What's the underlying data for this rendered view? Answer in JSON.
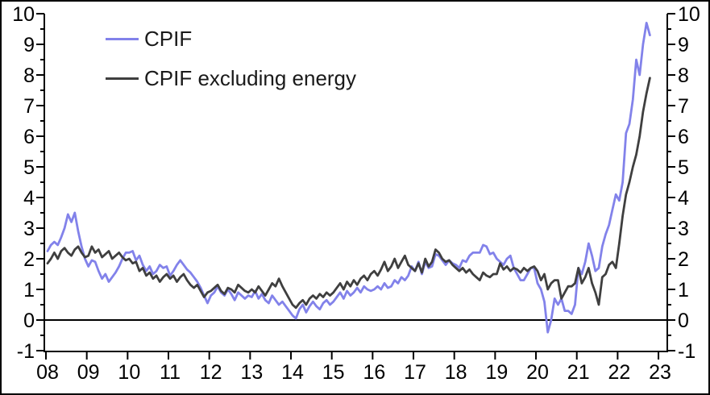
{
  "canvas": {
    "background": "#ffffff",
    "border_color": "#000000"
  },
  "chart_data": {
    "type": "line",
    "title": "",
    "xlabel": "",
    "ylabel": "",
    "frequency": "monthly",
    "x_start": "2008-01",
    "x_end": "2022-10",
    "xlim_years": [
      2008,
      2023
    ],
    "ylim": [
      -1,
      10
    ],
    "grid": "off",
    "zero_line": true,
    "dual_axis_labels": true,
    "legend_position": "top-left",
    "axis_color": "#000000",
    "xtick_labels": [
      "08",
      "09",
      "10",
      "11",
      "12",
      "13",
      "14",
      "15",
      "16",
      "17",
      "18",
      "19",
      "20",
      "21",
      "22",
      "23"
    ],
    "ytick_labels": [
      "-1",
      "0",
      "1",
      "2",
      "3",
      "4",
      "5",
      "6",
      "7",
      "8",
      "9",
      "10"
    ],
    "series": [
      {
        "name": "CPIF",
        "color": "#8282ea",
        "values": [
          2.25,
          2.45,
          2.55,
          2.45,
          2.7,
          3.0,
          3.45,
          3.2,
          3.5,
          2.9,
          2.4,
          2.0,
          1.75,
          1.95,
          1.9,
          1.6,
          1.35,
          1.5,
          1.25,
          1.4,
          1.55,
          1.75,
          2.0,
          2.2,
          2.2,
          2.25,
          1.95,
          2.1,
          1.8,
          1.6,
          1.75,
          1.5,
          1.6,
          1.8,
          1.7,
          1.75,
          1.45,
          1.6,
          1.8,
          1.95,
          1.8,
          1.65,
          1.55,
          1.4,
          1.25,
          1.05,
          0.8,
          0.55,
          0.8,
          0.9,
          1.1,
          0.9,
          0.8,
          1.0,
          0.85,
          0.65,
          0.9,
          0.8,
          0.7,
          0.8,
          0.75,
          0.95,
          0.7,
          0.85,
          0.65,
          0.55,
          0.8,
          0.65,
          0.5,
          0.6,
          0.45,
          0.3,
          0.15,
          0.05,
          0.35,
          0.5,
          0.25,
          0.45,
          0.6,
          0.45,
          0.35,
          0.55,
          0.65,
          0.5,
          0.6,
          0.75,
          0.9,
          0.7,
          0.95,
          0.8,
          0.9,
          1.05,
          0.9,
          1.1,
          1.0,
          0.95,
          1.0,
          1.1,
          1.0,
          1.2,
          1.05,
          1.1,
          1.3,
          1.2,
          1.4,
          1.3,
          1.45,
          1.75,
          1.6,
          1.9,
          1.5,
          1.9,
          1.7,
          1.75,
          2.15,
          2.1,
          1.95,
          1.8,
          1.95,
          1.85,
          1.8,
          1.7,
          1.95,
          1.9,
          2.1,
          2.2,
          2.2,
          2.2,
          2.45,
          2.4,
          2.15,
          2.2,
          2.0,
          1.9,
          1.8,
          2.0,
          2.1,
          1.7,
          1.5,
          1.3,
          1.3,
          1.5,
          1.7,
          1.7,
          1.2,
          1.0,
          0.6,
          -0.4,
          0.0,
          0.7,
          0.5,
          0.7,
          0.3,
          0.3,
          0.2,
          0.5,
          1.7,
          1.5,
          1.9,
          2.5,
          2.1,
          1.6,
          1.7,
          2.4,
          2.8,
          3.1,
          3.6,
          4.1,
          3.9,
          4.5,
          6.1,
          6.4,
          7.2,
          8.5,
          8.0,
          9.0,
          9.7,
          9.3
        ]
      },
      {
        "name": "CPIF excluding energy",
        "color": "#3f3f3f",
        "values": [
          1.85,
          2.0,
          2.2,
          2.0,
          2.25,
          2.35,
          2.2,
          2.1,
          2.3,
          2.4,
          2.2,
          2.05,
          2.1,
          2.4,
          2.2,
          2.3,
          2.05,
          2.15,
          2.25,
          2.0,
          2.1,
          2.2,
          2.05,
          1.95,
          2.0,
          1.85,
          1.9,
          1.6,
          1.7,
          1.45,
          1.55,
          1.35,
          1.45,
          1.25,
          1.4,
          1.5,
          1.35,
          1.45,
          1.25,
          1.4,
          1.5,
          1.3,
          1.15,
          1.05,
          1.15,
          0.95,
          0.75,
          0.9,
          0.95,
          1.05,
          1.15,
          0.95,
          0.85,
          1.05,
          1.0,
          0.9,
          1.15,
          1.05,
          0.95,
          0.9,
          1.0,
          0.9,
          1.1,
          0.95,
          0.8,
          1.0,
          1.2,
          1.1,
          1.35,
          1.1,
          0.9,
          0.7,
          0.5,
          0.4,
          0.55,
          0.65,
          0.5,
          0.7,
          0.8,
          0.7,
          0.85,
          0.75,
          0.9,
          0.8,
          0.9,
          1.05,
          1.2,
          1.0,
          1.25,
          1.1,
          1.3,
          1.15,
          1.35,
          1.45,
          1.3,
          1.5,
          1.6,
          1.45,
          1.65,
          1.9,
          1.6,
          1.75,
          2.0,
          1.7,
          1.9,
          2.1,
          1.8,
          1.7,
          1.6,
          1.85,
          1.55,
          2.0,
          1.75,
          1.9,
          2.3,
          2.2,
          2.0,
          1.9,
          1.95,
          1.8,
          1.7,
          1.6,
          1.7,
          1.55,
          1.65,
          1.5,
          1.4,
          1.3,
          1.55,
          1.45,
          1.4,
          1.5,
          1.5,
          1.85,
          1.65,
          1.75,
          1.6,
          1.7,
          1.65,
          1.55,
          1.7,
          1.6,
          1.7,
          1.75,
          1.6,
          1.3,
          1.5,
          1.0,
          1.2,
          1.3,
          1.3,
          0.7,
          0.9,
          1.1,
          1.1,
          1.2,
          1.7,
          1.2,
          1.4,
          1.7,
          1.2,
          0.9,
          0.5,
          1.4,
          1.5,
          1.8,
          1.9,
          1.7,
          2.5,
          3.4,
          4.1,
          4.5,
          5.0,
          5.4,
          6.0,
          6.8,
          7.4,
          7.9
        ]
      }
    ]
  }
}
